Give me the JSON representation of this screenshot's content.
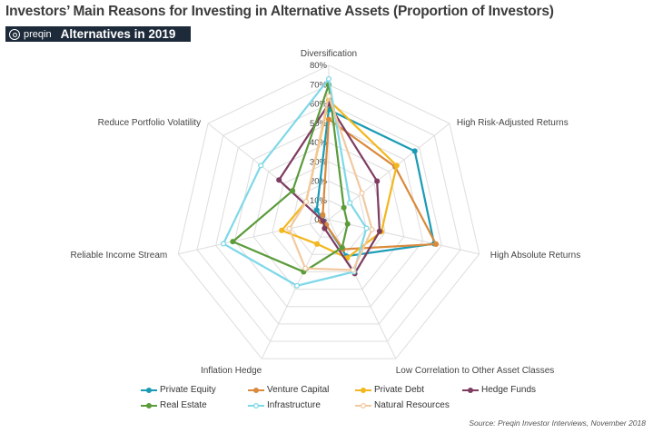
{
  "title": "Investors’ Main Reasons for Investing in Alternative Assets (Proportion of Investors)",
  "brand": {
    "logo_text": "preqin",
    "subtitle": "Alternatives in 2019"
  },
  "source": "Source: Preqin Investor Interviews, November 2018",
  "chart_data": {
    "type": "radar",
    "categories": [
      "Diversification",
      "High Risk-Adjusted Returns",
      "High Absolute Returns",
      "Low Correlation to Other Asset Classes",
      "Inflation Hedge",
      "Reliable Income Stream",
      "Reduce Portfolio Volatility"
    ],
    "rlim": [
      0,
      80
    ],
    "ticks": [
      "0%",
      "10%",
      "20%",
      "30%",
      "40%",
      "50%",
      "60%",
      "70%",
      "80%"
    ],
    "grid": true,
    "legend_position": "bottom",
    "series": [
      {
        "name": "Private Equity",
        "color": "#1a9bb5",
        "marker": "filled",
        "values": [
          57,
          57,
          56,
          21,
          3,
          3,
          8
        ]
      },
      {
        "name": "Venture Capital",
        "color": "#d98a3b",
        "marker": "filled",
        "values": [
          52,
          44,
          57,
          17,
          3,
          4,
          4
        ]
      },
      {
        "name": "Private Debt",
        "color": "#f2b71e",
        "marker": "filled",
        "values": [
          62,
          45,
          28,
          22,
          14,
          25,
          15
        ]
      },
      {
        "name": "Hedge Funds",
        "color": "#7e3c60",
        "marker": "filled",
        "values": [
          60,
          32,
          27,
          31,
          5,
          3,
          33
        ]
      },
      {
        "name": "Real Estate",
        "color": "#5a9b3a",
        "marker": "filled",
        "values": [
          70,
          10,
          10,
          16,
          30,
          51,
          24
        ]
      },
      {
        "name": "Infrastructure",
        "color": "#7fd8e8",
        "marker": "hollow",
        "values": [
          73,
          14,
          20,
          30,
          38,
          56,
          45
        ]
      },
      {
        "name": "Natural Resources",
        "color": "#f2c9a0",
        "marker": "hollow",
        "values": [
          64,
          22,
          23,
          29,
          28,
          21,
          15
        ]
      }
    ]
  }
}
